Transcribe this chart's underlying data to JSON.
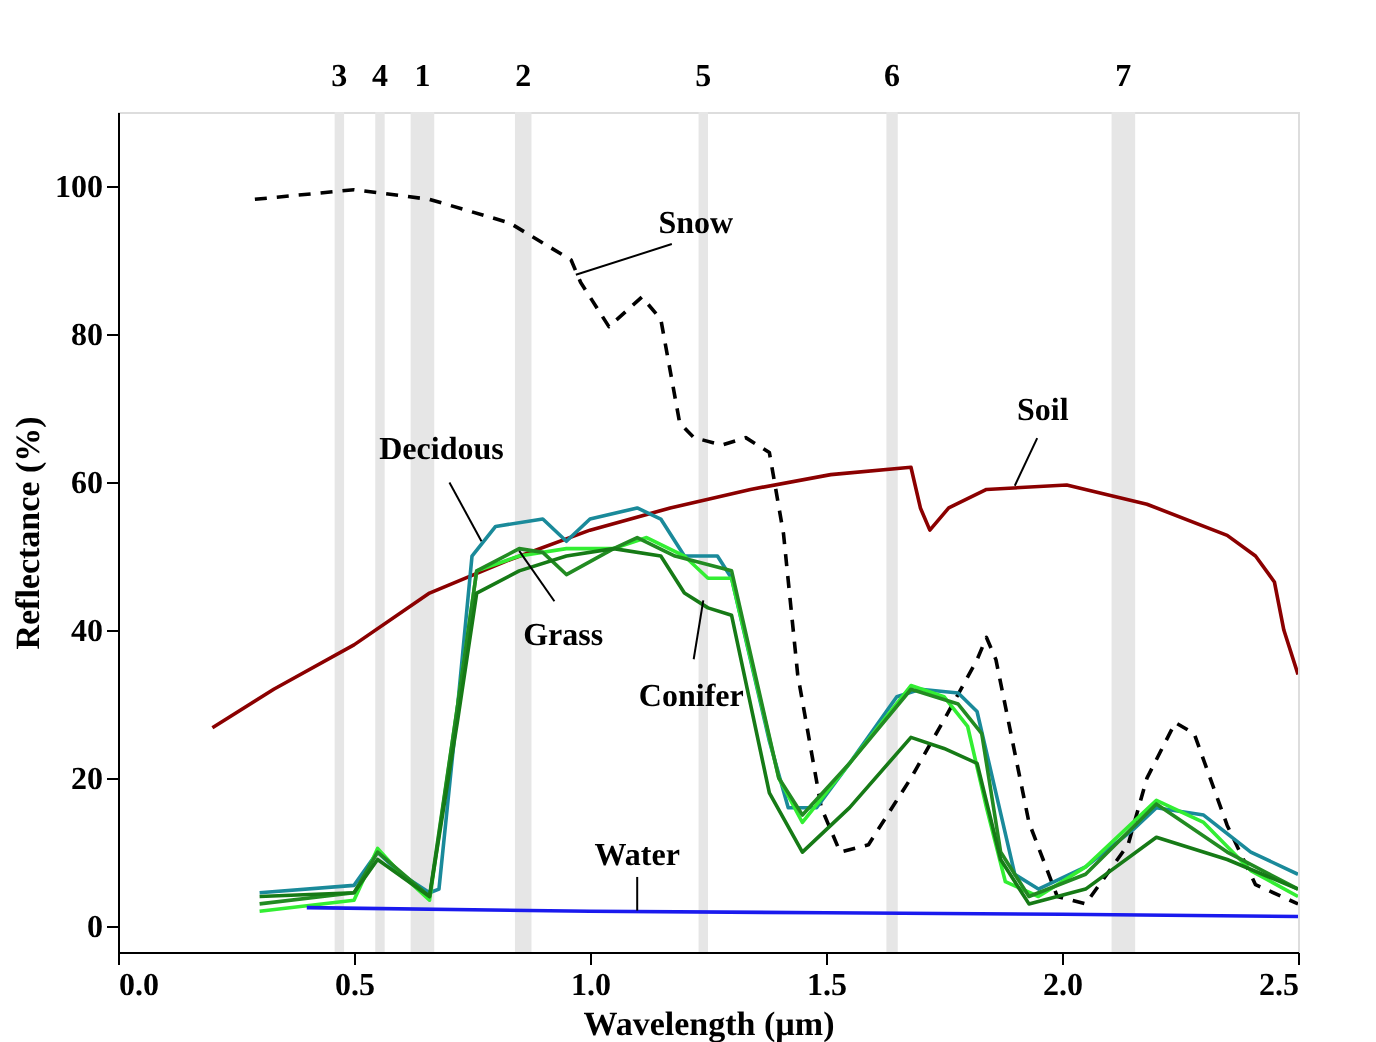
{
  "chart_data": {
    "type": "line",
    "xlabel": "Wavelength (µm)",
    "ylabel": "Reflectance (%)",
    "xlim": [
      0,
      2.5
    ],
    "xticks": [
      {
        "value": 0,
        "label": "0.0"
      },
      0.5,
      {
        "value": 1,
        "label": "1.0"
      },
      1.5,
      {
        "value": 2,
        "label": "2.0"
      },
      2.5
    ],
    "ylim": [
      -3.5,
      110
    ],
    "yticks": [
      0,
      20,
      40,
      60,
      80,
      100
    ],
    "grid": false,
    "marker": "none",
    "bands": [
      {
        "axis": "x",
        "from": 0.459,
        "to": 0.479,
        "label": "3",
        "color": "#e6e6e6"
      },
      {
        "axis": "x",
        "from": 0.545,
        "to": 0.565,
        "label": "4",
        "color": "#e6e6e6"
      },
      {
        "axis": "x",
        "from": 0.62,
        "to": 0.67,
        "label": "1",
        "color": "#e6e6e6"
      },
      {
        "axis": "x",
        "from": 0.841,
        "to": 0.876,
        "label": "2",
        "color": "#e6e6e6"
      },
      {
        "axis": "x",
        "from": 1.23,
        "to": 1.25,
        "label": "5",
        "color": "#e6e6e6"
      },
      {
        "axis": "x",
        "from": 1.628,
        "to": 1.652,
        "label": "6",
        "color": "#e6e6e6"
      },
      {
        "axis": "x",
        "from": 2.105,
        "to": 2.155,
        "label": "7",
        "color": "#e6e6e6"
      }
    ],
    "annotations": [
      {
        "text": "Snow",
        "x": 0.97,
        "y": 88
      },
      {
        "text": "Soil",
        "x": 1.9,
        "y": 59.5
      },
      {
        "text": "Decidous",
        "x": 0.77,
        "y": 52
      },
      {
        "text": "Grass",
        "x": 0.85,
        "y": 50.7
      },
      {
        "text": "Conifer",
        "x": 1.24,
        "y": 44
      },
      {
        "text": "Water",
        "x": 1.1,
        "y": 2.1
      }
    ],
    "series": [
      {
        "color": "#000000",
        "line_style": "dashed",
        "x": [
          0.29,
          0.5,
          0.66,
          0.83,
          0.96,
          0.98,
          1.04,
          1.11,
          1.15,
          1.19,
          1.22,
          1.28,
          1.33,
          1.38,
          1.41,
          1.44,
          1.49,
          1.53,
          1.59,
          1.68,
          1.76,
          1.82,
          1.84,
          1.86,
          1.93,
          1.99,
          2.05,
          2.14,
          2.18,
          2.24,
          2.28,
          2.35,
          2.41,
          2.5
        ],
        "values": [
          98.2,
          99.5,
          98.2,
          95,
          90,
          87,
          81,
          85,
          82,
          68,
          66,
          65,
          66,
          64,
          53,
          34,
          16,
          10,
          11,
          20,
          29,
          36,
          39,
          36,
          14,
          4,
          3,
          11,
          20,
          27.5,
          26,
          13.6,
          5.6,
          3
        ]
      },
      {
        "color": "#8b0000",
        "line_style": "solid",
        "x": [
          0.2,
          0.33,
          0.5,
          0.66,
          0.83,
          1.0,
          1.17,
          1.34,
          1.51,
          1.68,
          1.7,
          1.72,
          1.76,
          1.84,
          2.01,
          2.18,
          2.35,
          2.41,
          2.45,
          2.47,
          2.5
        ],
        "values": [
          26.8,
          32,
          38,
          45,
          49.5,
          53.5,
          56.5,
          59,
          61,
          62,
          56.5,
          53.5,
          56.5,
          59,
          59.6,
          57,
          52.8,
          50,
          46.5,
          40,
          34
        ]
      },
      {
        "color": "#1a8a9a",
        "line_style": "solid",
        "x": [
          0.3,
          0.5,
          0.55,
          0.6,
          0.66,
          0.68,
          0.72,
          0.75,
          0.8,
          0.9,
          0.95,
          1.0,
          1.1,
          1.15,
          1.2,
          1.27,
          1.3,
          1.38,
          1.42,
          1.48,
          1.55,
          1.65,
          1.7,
          1.78,
          1.82,
          1.86,
          1.9,
          1.95,
          2.05,
          2.15,
          2.2,
          2.3,
          2.4,
          2.5
        ],
        "values": [
          4.5,
          5.5,
          10,
          7,
          4.5,
          5,
          30,
          50,
          54,
          55,
          52,
          55,
          56.5,
          55,
          50,
          50,
          47,
          25,
          16,
          16,
          22,
          31,
          32,
          31.5,
          29,
          18,
          7,
          5,
          8,
          13,
          16,
          15,
          10,
          7
        ]
      },
      {
        "color": "#33ee33",
        "line_style": "solid",
        "x": [
          0.3,
          0.5,
          0.55,
          0.6,
          0.66,
          0.72,
          0.76,
          0.85,
          0.95,
          1.05,
          1.12,
          1.2,
          1.25,
          1.3,
          1.4,
          1.45,
          1.55,
          1.68,
          1.75,
          1.8,
          1.84,
          1.88,
          1.95,
          2.05,
          2.2,
          2.3,
          2.4,
          2.5
        ],
        "values": [
          2,
          3.5,
          10.5,
          7,
          3.5,
          30,
          48,
          50,
          51,
          51,
          52.5,
          50,
          47,
          47,
          20,
          14,
          22,
          32.5,
          31,
          27,
          16,
          6,
          4,
          8,
          17,
          14,
          7.5,
          4
        ]
      },
      {
        "color": "#228b22",
        "line_style": "solid",
        "x": [
          0.3,
          0.5,
          0.55,
          0.66,
          0.72,
          0.76,
          0.85,
          0.9,
          0.95,
          1.05,
          1.1,
          1.18,
          1.3,
          1.4,
          1.45,
          1.55,
          1.68,
          1.78,
          1.83,
          1.87,
          1.93,
          2.05,
          2.2,
          2.35,
          2.5
        ],
        "values": [
          3,
          4.5,
          10,
          4,
          30,
          48,
          51,
          50.5,
          47.5,
          51,
          52.5,
          50,
          48,
          20,
          15,
          22,
          32,
          30,
          26,
          10,
          4,
          7,
          16.5,
          10,
          5
        ]
      },
      {
        "color": "#167a16",
        "line_style": "solid",
        "x": [
          0.3,
          0.5,
          0.55,
          0.66,
          0.72,
          0.76,
          0.85,
          0.95,
          1.05,
          1.15,
          1.2,
          1.25,
          1.3,
          1.38,
          1.45,
          1.55,
          1.68,
          1.75,
          1.82,
          1.87,
          1.93,
          2.05,
          2.2,
          2.35,
          2.5
        ],
        "values": [
          4,
          4.5,
          9,
          4,
          28,
          45,
          48,
          50,
          51,
          50,
          45,
          43,
          42,
          18,
          10,
          16,
          25.5,
          24,
          22,
          9,
          3,
          5,
          12,
          9,
          5
        ]
      },
      {
        "color": "#1a1aee",
        "line_style": "solid",
        "x": [
          0.4,
          1.0,
          1.5,
          2.0,
          2.5
        ],
        "values": [
          2.5,
          2.0,
          1.8,
          1.6,
          1.3
        ]
      }
    ]
  }
}
